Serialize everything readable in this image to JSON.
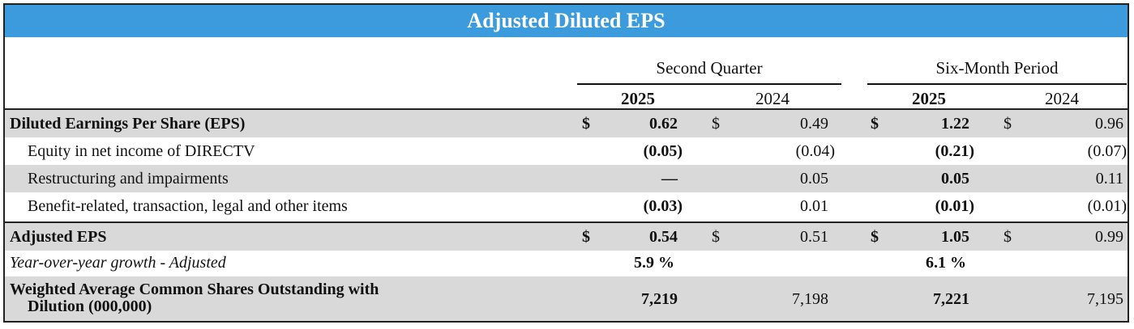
{
  "title": "Adjusted Diluted EPS",
  "header": {
    "q_group": "Second Quarter",
    "six_group": "Six-Month Period",
    "q_2025": "2025",
    "q_2024": "2024",
    "s_2025": "2025",
    "s_2024": "2024"
  },
  "rows": {
    "diluted": {
      "label": "Diluted Earnings Per Share (EPS)",
      "cur1": "$",
      "q25": "0.62",
      "cur2": "$",
      "q24": "0.49",
      "cur3": "$",
      "s25": "1.22",
      "cur4": "$",
      "s24": "0.96"
    },
    "directv": {
      "label": "Equity in net income of DIRECTV",
      "q25": "(0.05)",
      "q24": "(0.04)",
      "s25": "(0.21)",
      "s24": "(0.07)"
    },
    "restructuring": {
      "label": "Restructuring and impairments",
      "q25": "—",
      "q24": "0.05",
      "s25": "0.05",
      "s24": "0.11"
    },
    "benefit": {
      "label": "Benefit-related, transaction, legal and other items",
      "q25": "(0.03)",
      "q24": "0.01",
      "s25": "(0.01)",
      "s24": "(0.01)"
    },
    "adjusted": {
      "label": "Adjusted EPS",
      "cur1": "$",
      "q25": "0.54",
      "cur2": "$",
      "q24": "0.51",
      "cur3": "$",
      "s25": "1.05",
      "cur4": "$",
      "s24": "0.99"
    },
    "growth": {
      "label": "Year-over-year growth - Adjusted",
      "q25": "5.9 %",
      "s25": "6.1 %"
    },
    "shares": {
      "label_line1": "Weighted Average Common Shares Outstanding with",
      "label_line2": "Dilution (000,000)",
      "q25": "7,219",
      "q24": "7,198",
      "s25": "7,221",
      "s24": "7,195"
    }
  }
}
